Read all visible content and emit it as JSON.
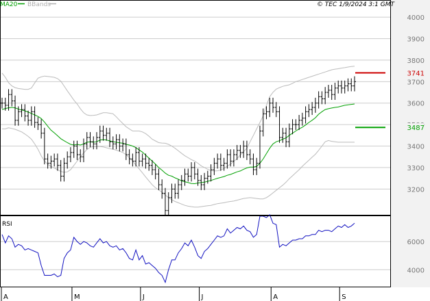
{
  "caption": "© TEC 1/9/2024 3:1 GMT",
  "legend": [
    {
      "name": "MA20",
      "color": "#00a000"
    },
    {
      "name": "BBands",
      "color": "#b0b0b0"
    }
  ],
  "colors": {
    "price": "#000000",
    "ma": "#00a000",
    "bands": "#bbbbbb",
    "rsi": "#1010c0",
    "grid": "#cccccc",
    "frame": "#000000",
    "resistance": "#cc0000",
    "support": "#00a000"
  },
  "chart_data": [
    {
      "type": "ohlc",
      "title": "",
      "grid": true,
      "y_axis_side": "right",
      "ylim": [
        3080,
        4080
      ],
      "yticks": [
        3200,
        3300,
        3400,
        3500,
        3600,
        3700,
        3800,
        3900,
        4000
      ],
      "xlim": [
        0,
        108
      ],
      "x_month_labels": [
        {
          "label": "A",
          "x": 0
        },
        {
          "label": "M",
          "x": 21
        },
        {
          "label": "J",
          "x": 42
        },
        {
          "label": "J",
          "x": 60
        },
        {
          "label": "A",
          "x": 82
        },
        {
          "label": "S",
          "x": 103
        }
      ],
      "levels": [
        {
          "name": "resistance",
          "value": 3741,
          "label": "3741",
          "color": "#cc0000"
        },
        {
          "name": "support",
          "value": 3487,
          "label": "3487",
          "color": "#00a000"
        }
      ],
      "close": [
        3600,
        3590,
        3640,
        3610,
        3520,
        3560,
        3570,
        3540,
        3520,
        3560,
        3510,
        3500,
        3460,
        3340,
        3320,
        3330,
        3340,
        3310,
        3260,
        3320,
        3350,
        3370,
        3400,
        3360,
        3350,
        3410,
        3440,
        3420,
        3410,
        3440,
        3470,
        3450,
        3460,
        3420,
        3410,
        3430,
        3400,
        3410,
        3360,
        3340,
        3330,
        3370,
        3330,
        3340,
        3320,
        3310,
        3290,
        3270,
        3220,
        3180,
        3100,
        3160,
        3200,
        3180,
        3220,
        3240,
        3270,
        3260,
        3300,
        3270,
        3240,
        3220,
        3250,
        3260,
        3290,
        3320,
        3340,
        3310,
        3320,
        3360,
        3330,
        3360,
        3380,
        3370,
        3400,
        3360,
        3340,
        3290,
        3320,
        3470,
        3550,
        3560,
        3600,
        3580,
        3560,
        3440,
        3460,
        3420,
        3480,
        3500,
        3500,
        3520,
        3530,
        3560,
        3570,
        3580,
        3600,
        3630,
        3620,
        3650,
        3660,
        3640,
        3670,
        3680,
        3670,
        3680,
        3690,
        3680,
        3700
      ],
      "ma20": [
        3570,
        3575,
        3578,
        3580,
        3578,
        3572,
        3568,
        3564,
        3558,
        3552,
        3545,
        3538,
        3528,
        3512,
        3492,
        3474,
        3462,
        3448,
        3434,
        3425,
        3416,
        3408,
        3405,
        3408,
        3405,
        3410,
        3418,
        3420,
        3418,
        3420,
        3428,
        3430,
        3428,
        3424,
        3420,
        3418,
        3415,
        3413,
        3408,
        3405,
        3400,
        3393,
        3382,
        3372,
        3358,
        3344,
        3330,
        3316,
        3300,
        3288,
        3274,
        3264,
        3260,
        3252,
        3246,
        3238,
        3234,
        3230,
        3226,
        3225,
        3228,
        3230,
        3232,
        3236,
        3240,
        3245,
        3250,
        3254,
        3258,
        3264,
        3268,
        3274,
        3280,
        3284,
        3292,
        3298,
        3302,
        3302,
        3305,
        3320,
        3340,
        3365,
        3390,
        3410,
        3420,
        3425,
        3432,
        3438,
        3450,
        3460,
        3470,
        3480,
        3488,
        3498,
        3510,
        3520,
        3532,
        3548,
        3560,
        3570,
        3574,
        3577,
        3580,
        3582,
        3586,
        3590,
        3592,
        3594,
        3596
      ],
      "bb_upper": [
        3740,
        3720,
        3695,
        3680,
        3672,
        3668,
        3666,
        3664,
        3664,
        3670,
        3694,
        3716,
        3722,
        3726,
        3724,
        3722,
        3720,
        3714,
        3702,
        3680,
        3657,
        3636,
        3614,
        3596,
        3574,
        3555,
        3545,
        3542,
        3543,
        3545,
        3550,
        3555,
        3555,
        3553,
        3550,
        3536,
        3520,
        3505,
        3490,
        3480,
        3470,
        3470,
        3470,
        3466,
        3458,
        3446,
        3432,
        3424,
        3416,
        3414,
        3413,
        3408,
        3400,
        3390,
        3378,
        3366,
        3355,
        3346,
        3337,
        3330,
        3320,
        3308,
        3300,
        3292,
        3286,
        3284,
        3285,
        3288,
        3296,
        3306,
        3316,
        3328,
        3342,
        3358,
        3374,
        3390,
        3420,
        3450,
        3480,
        3510,
        3540,
        3590,
        3630,
        3650,
        3665,
        3672,
        3678,
        3682,
        3685,
        3692,
        3700,
        3705,
        3710,
        3715,
        3720,
        3725,
        3730,
        3735,
        3740,
        3745,
        3750,
        3755,
        3758,
        3760,
        3763,
        3765,
        3768,
        3770,
        3772
      ],
      "bb_lower": [
        3480,
        3480,
        3485,
        3482,
        3478,
        3472,
        3466,
        3456,
        3445,
        3432,
        3410,
        3385,
        3355,
        3330,
        3315,
        3305,
        3298,
        3290,
        3282,
        3278,
        3280,
        3290,
        3310,
        3330,
        3350,
        3368,
        3384,
        3394,
        3398,
        3398,
        3398,
        3396,
        3392,
        3388,
        3385,
        3381,
        3376,
        3370,
        3360,
        3346,
        3330,
        3312,
        3294,
        3276,
        3256,
        3238,
        3220,
        3206,
        3196,
        3185,
        3172,
        3160,
        3150,
        3142,
        3136,
        3130,
        3124,
        3120,
        3118,
        3116,
        3116,
        3118,
        3120,
        3122,
        3124,
        3128,
        3132,
        3134,
        3136,
        3140,
        3142,
        3144,
        3148,
        3152,
        3156,
        3158,
        3160,
        3158,
        3156,
        3154,
        3154,
        3160,
        3170,
        3182,
        3194,
        3206,
        3218,
        3232,
        3248,
        3262,
        3276,
        3290,
        3306,
        3320,
        3334,
        3348,
        3362,
        3380,
        3400,
        3420,
        3426,
        3422,
        3420,
        3418,
        3418,
        3418,
        3418,
        3418,
        3418
      ]
    },
    {
      "type": "line",
      "title": "RSI",
      "grid": true,
      "y_axis_side": "right",
      "ylim": [
        2800,
        7800
      ],
      "yticks": [
        4000,
        6000
      ],
      "series": [
        {
          "name": "RSI",
          "values": [
            6500,
            5900,
            6400,
            6200,
            5600,
            5800,
            5700,
            5400,
            5500,
            5400,
            5300,
            5200,
            4300,
            3600,
            3600,
            3600,
            3700,
            3500,
            3600,
            4800,
            5200,
            5400,
            6300,
            6000,
            5800,
            6000,
            5900,
            5700,
            5600,
            5900,
            6200,
            5900,
            6000,
            5700,
            5600,
            5700,
            5400,
            5500,
            5200,
            4800,
            4700,
            5400,
            4700,
            5000,
            4400,
            4500,
            4300,
            4100,
            3800,
            3600,
            3100,
            4000,
            4700,
            4700,
            5200,
            5500,
            5900,
            5700,
            6100,
            5600,
            5000,
            4800,
            5300,
            5500,
            5800,
            6100,
            6400,
            6300,
            6400,
            6900,
            6600,
            6800,
            7000,
            6900,
            7100,
            6800,
            6700,
            6300,
            6500,
            7800,
            7800,
            7700,
            7900,
            7300,
            7200,
            5600,
            5800,
            5700,
            5900,
            6100,
            6100,
            6200,
            6200,
            6400,
            6400,
            6500,
            6500,
            6800,
            6700,
            6800,
            6800,
            6700,
            6900,
            7100,
            7000,
            7200,
            7000,
            7100,
            7300
          ]
        }
      ]
    }
  ]
}
